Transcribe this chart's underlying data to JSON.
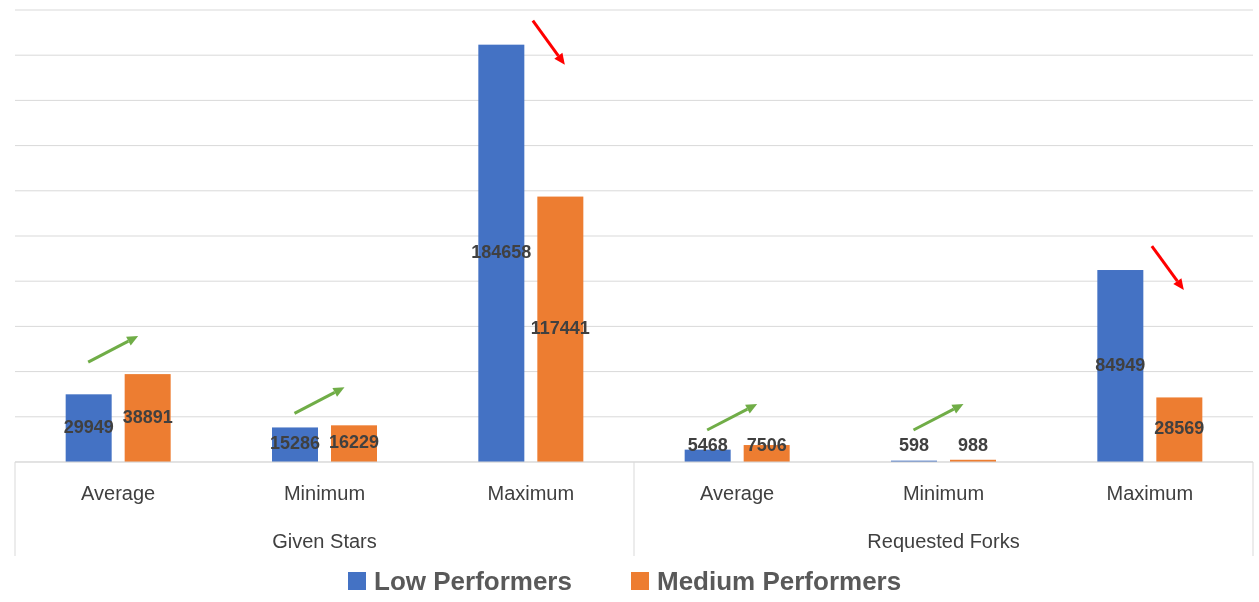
{
  "chart_data": {
    "type": "bar",
    "categories": [
      "Average",
      "Minimum",
      "Maximum",
      "Average",
      "Minimum",
      "Maximum"
    ],
    "series": [
      {
        "name": "Low Performers",
        "color": "#4472c4",
        "values": [
          29949,
          15286,
          184658,
          5468,
          598,
          84949
        ]
      },
      {
        "name": "Medium Performers",
        "color": "#ed7d31",
        "values": [
          38891,
          16229,
          117441,
          7506,
          988,
          28569
        ]
      }
    ],
    "ylim": [
      0,
      200000
    ],
    "yticks": [
      {
        "value": 0,
        "label": null
      },
      {
        "value": 20000,
        "label": null
      },
      {
        "value": 40000,
        "label": null
      },
      {
        "value": 60000,
        "label": null
      },
      {
        "value": 80000,
        "label": null
      },
      {
        "value": 100000,
        "label": null
      },
      {
        "value": 120000,
        "label": null
      },
      {
        "value": 140000,
        "label": null
      },
      {
        "value": 160000,
        "label": null
      },
      {
        "value": 180000,
        "label": null
      },
      {
        "value": 200000,
        "label": null
      }
    ],
    "annotations": [
      "Given Stars",
      "Requested Forks"
    ],
    "data_labels": true,
    "grid": "y",
    "legend": "bottom",
    "tick_labels": "x"
  }
}
